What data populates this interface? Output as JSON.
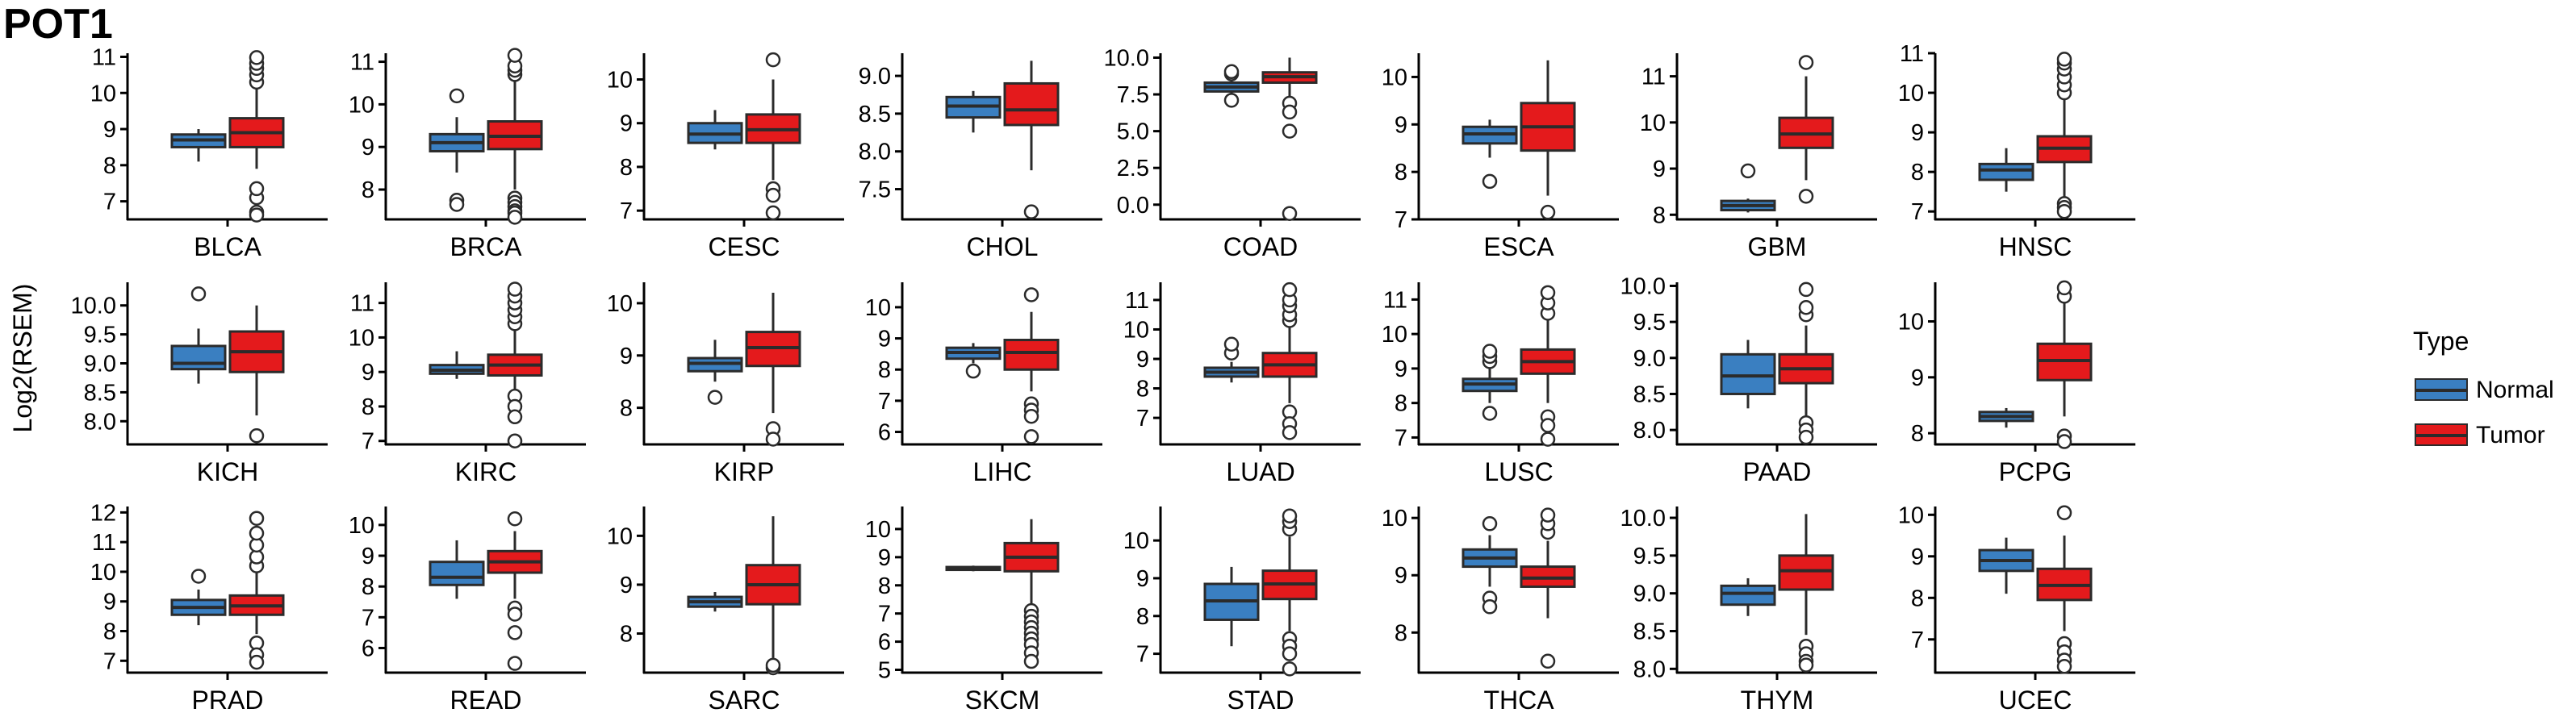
{
  "title": "POT1",
  "ylabel": "Log2(RSEM)",
  "legend": {
    "title": "Type",
    "items": [
      {
        "label": "Normal",
        "color": "#3a7fc1"
      },
      {
        "label": "Tumor",
        "color": "#e41a1c"
      }
    ]
  },
  "chart_data": {
    "type": "boxplot",
    "series_order": [
      "Normal",
      "Tumor"
    ],
    "panels": [
      {
        "name": "BLCA",
        "ylim": [
          6.5,
          11.1
        ],
        "ticks": [
          7,
          8,
          9,
          10,
          11
        ],
        "normal": {
          "q1": 8.5,
          "median": 8.7,
          "q3": 8.85,
          "lo": 8.1,
          "hi": 9.0,
          "out": []
        },
        "tumor": {
          "q1": 8.5,
          "median": 8.9,
          "q3": 9.3,
          "lo": 7.9,
          "hi": 10.2,
          "out": [
            7.1,
            7.35,
            6.7,
            6.62,
            10.3,
            10.5,
            10.68,
            10.82,
            10.98
          ]
        }
      },
      {
        "name": "BRCA",
        "ylim": [
          7.3,
          11.2
        ],
        "ticks": [
          8,
          9,
          10,
          11
        ],
        "normal": {
          "q1": 8.9,
          "median": 9.1,
          "q3": 9.3,
          "lo": 8.4,
          "hi": 9.7,
          "out": [
            7.75,
            7.65,
            10.2
          ]
        },
        "tumor": {
          "q1": 8.95,
          "median": 9.25,
          "q3": 9.6,
          "lo": 8.0,
          "hi": 10.6,
          "out": [
            7.8,
            7.7,
            7.6,
            7.5,
            7.45,
            7.35,
            10.7,
            10.8,
            10.9,
            11.15
          ]
        }
      },
      {
        "name": "CESC",
        "ylim": [
          6.8,
          10.6
        ],
        "ticks": [
          7,
          8,
          9,
          10
        ],
        "normal": {
          "q1": 8.55,
          "median": 8.75,
          "q3": 9.0,
          "lo": 8.4,
          "hi": 9.3,
          "out": []
        },
        "tumor": {
          "q1": 8.55,
          "median": 8.85,
          "q3": 9.2,
          "lo": 7.7,
          "hi": 10.0,
          "out": [
            7.5,
            7.35,
            6.95,
            10.45
          ]
        }
      },
      {
        "name": "CHOL",
        "ylim": [
          7.1,
          9.3
        ],
        "ticks": [
          7.5,
          8.0,
          8.5,
          9.0
        ],
        "normal": {
          "q1": 8.45,
          "median": 8.6,
          "q3": 8.72,
          "lo": 8.25,
          "hi": 8.8,
          "out": []
        },
        "tumor": {
          "q1": 8.35,
          "median": 8.55,
          "q3": 8.9,
          "lo": 7.75,
          "hi": 9.2,
          "out": [
            7.2
          ]
        }
      },
      {
        "name": "COAD",
        "ylim": [
          -1.0,
          10.3
        ],
        "ticks": [
          0.0,
          2.5,
          5.0,
          7.5,
          10.0
        ],
        "normal": {
          "q1": 7.7,
          "median": 8.0,
          "q3": 8.3,
          "lo": 7.5,
          "hi": 8.6,
          "out": [
            7.1,
            8.9,
            9.05
          ]
        },
        "tumor": {
          "q1": 8.3,
          "median": 8.7,
          "q3": 9.0,
          "lo": 7.3,
          "hi": 10.0,
          "out": [
            6.9,
            6.3,
            5.0,
            -0.6
          ]
        }
      },
      {
        "name": "ESCA",
        "ylim": [
          7.0,
          10.5
        ],
        "ticks": [
          7,
          8,
          9,
          10
        ],
        "normal": {
          "q1": 8.6,
          "median": 8.8,
          "q3": 8.95,
          "lo": 8.3,
          "hi": 9.1,
          "out": [
            7.8
          ]
        },
        "tumor": {
          "q1": 8.45,
          "median": 8.95,
          "q3": 9.45,
          "lo": 7.5,
          "hi": 10.35,
          "out": [
            7.15
          ]
        }
      },
      {
        "name": "GBM",
        "ylim": [
          7.9,
          11.5
        ],
        "ticks": [
          8,
          9,
          10,
          11
        ],
        "normal": {
          "q1": 8.1,
          "median": 8.2,
          "q3": 8.3,
          "lo": 8.05,
          "hi": 8.35,
          "out": [
            8.95
          ]
        },
        "tumor": {
          "q1": 9.45,
          "median": 9.75,
          "q3": 10.1,
          "lo": 8.75,
          "hi": 11.0,
          "out": [
            8.4,
            11.3
          ]
        }
      },
      {
        "name": "HNSC",
        "ylim": [
          6.8,
          11.0
        ],
        "ticks": [
          7,
          8,
          9,
          10,
          11
        ],
        "normal": {
          "q1": 7.8,
          "median": 8.05,
          "q3": 8.2,
          "lo": 7.5,
          "hi": 8.6,
          "out": []
        },
        "tumor": {
          "q1": 8.25,
          "median": 8.6,
          "q3": 8.9,
          "lo": 7.3,
          "hi": 9.9,
          "out": [
            7.2,
            7.1,
            7.0,
            10.0,
            10.2,
            10.4,
            10.6,
            10.75,
            10.85
          ]
        }
      },
      {
        "name": "KICH",
        "ylim": [
          7.6,
          10.4
        ],
        "ticks": [
          8.0,
          8.5,
          9.0,
          9.5,
          10.0
        ],
        "normal": {
          "q1": 8.9,
          "median": 9.0,
          "q3": 9.3,
          "lo": 8.65,
          "hi": 9.6,
          "out": [
            10.2
          ]
        },
        "tumor": {
          "q1": 8.85,
          "median": 9.2,
          "q3": 9.55,
          "lo": 8.1,
          "hi": 10.0,
          "out": [
            7.75
          ]
        }
      },
      {
        "name": "KIRC",
        "ylim": [
          6.9,
          11.6
        ],
        "ticks": [
          7,
          8,
          9,
          10,
          11
        ],
        "normal": {
          "q1": 8.95,
          "median": 9.05,
          "q3": 9.2,
          "lo": 8.8,
          "hi": 9.6,
          "out": []
        },
        "tumor": {
          "q1": 8.9,
          "median": 9.2,
          "q3": 9.5,
          "lo": 8.5,
          "hi": 10.3,
          "out": [
            8.3,
            8.0,
            7.7,
            7.0,
            10.4,
            10.6,
            10.8,
            11.0,
            11.2,
            11.4
          ]
        }
      },
      {
        "name": "KIRP",
        "ylim": [
          7.3,
          10.4
        ],
        "ticks": [
          8,
          9,
          10
        ],
        "normal": {
          "q1": 8.7,
          "median": 8.85,
          "q3": 8.95,
          "lo": 8.5,
          "hi": 9.3,
          "out": [
            8.2
          ]
        },
        "tumor": {
          "q1": 8.8,
          "median": 9.15,
          "q3": 9.45,
          "lo": 7.9,
          "hi": 10.2,
          "out": [
            7.6,
            7.4
          ]
        }
      },
      {
        "name": "LIHC",
        "ylim": [
          5.6,
          10.8
        ],
        "ticks": [
          6,
          7,
          8,
          9,
          10
        ],
        "normal": {
          "q1": 8.35,
          "median": 8.55,
          "q3": 8.7,
          "lo": 8.2,
          "hi": 8.85,
          "out": [
            7.95
          ]
        },
        "tumor": {
          "q1": 8.0,
          "median": 8.55,
          "q3": 8.95,
          "lo": 7.3,
          "hi": 9.85,
          "out": [
            6.9,
            6.7,
            6.5,
            5.85,
            10.4
          ]
        }
      },
      {
        "name": "LUAD",
        "ylim": [
          6.1,
          11.6
        ],
        "ticks": [
          7,
          8,
          9,
          10,
          11
        ],
        "normal": {
          "q1": 8.4,
          "median": 8.55,
          "q3": 8.7,
          "lo": 8.2,
          "hi": 8.9,
          "out": [
            9.2,
            9.5
          ]
        },
        "tumor": {
          "q1": 8.4,
          "median": 8.8,
          "q3": 9.2,
          "lo": 7.5,
          "hi": 10.1,
          "out": [
            7.2,
            6.8,
            6.5,
            10.3,
            10.5,
            10.8,
            11.0,
            11.35
          ]
        }
      },
      {
        "name": "LUSC",
        "ylim": [
          6.8,
          11.5
        ],
        "ticks": [
          7,
          8,
          9,
          10,
          11
        ],
        "normal": {
          "q1": 8.35,
          "median": 8.55,
          "q3": 8.7,
          "lo": 8.0,
          "hi": 9.0,
          "out": [
            9.2,
            9.35,
            9.5,
            7.7
          ]
        },
        "tumor": {
          "q1": 8.85,
          "median": 9.2,
          "q3": 9.55,
          "lo": 8.0,
          "hi": 10.4,
          "out": [
            7.6,
            7.35,
            6.95,
            10.6,
            10.9,
            11.2
          ]
        }
      },
      {
        "name": "PAAD",
        "ylim": [
          7.8,
          10.05
        ],
        "ticks": [
          8.0,
          8.5,
          9.0,
          9.5,
          10.0
        ],
        "normal": {
          "q1": 8.5,
          "median": 8.75,
          "q3": 9.05,
          "lo": 8.3,
          "hi": 9.25,
          "out": []
        },
        "tumor": {
          "q1": 8.65,
          "median": 8.85,
          "q3": 9.05,
          "lo": 8.2,
          "hi": 9.45,
          "out": [
            8.1,
            8.0,
            7.9,
            9.6,
            9.7,
            9.95
          ]
        }
      },
      {
        "name": "PCPG",
        "ylim": [
          7.8,
          10.7
        ],
        "ticks": [
          8,
          9,
          10
        ],
        "normal": {
          "q1": 8.22,
          "median": 8.3,
          "q3": 8.38,
          "lo": 8.1,
          "hi": 8.45,
          "out": []
        },
        "tumor": {
          "q1": 8.95,
          "median": 9.3,
          "q3": 9.6,
          "lo": 8.3,
          "hi": 10.35,
          "out": [
            7.95,
            7.85,
            10.45,
            10.6
          ]
        }
      },
      {
        "name": "PRAD",
        "ylim": [
          6.6,
          12.2
        ],
        "ticks": [
          7,
          8,
          9,
          10,
          11,
          12
        ],
        "normal": {
          "q1": 8.55,
          "median": 8.8,
          "q3": 9.05,
          "lo": 8.2,
          "hi": 9.4,
          "out": [
            9.85
          ]
        },
        "tumor": {
          "q1": 8.55,
          "median": 8.85,
          "q3": 9.2,
          "lo": 7.9,
          "hi": 10.0,
          "out": [
            7.6,
            7.2,
            6.95,
            10.2,
            10.5,
            10.9,
            11.3,
            11.8
          ]
        }
      },
      {
        "name": "READ",
        "ylim": [
          5.2,
          10.6
        ],
        "ticks": [
          6,
          7,
          8,
          9,
          10
        ],
        "normal": {
          "q1": 8.05,
          "median": 8.3,
          "q3": 8.8,
          "lo": 7.6,
          "hi": 9.5,
          "out": []
        },
        "tumor": {
          "q1": 8.45,
          "median": 8.8,
          "q3": 9.15,
          "lo": 7.6,
          "hi": 9.8,
          "out": [
            7.3,
            7.1,
            6.5,
            5.5,
            10.2
          ]
        }
      },
      {
        "name": "SARC",
        "ylim": [
          7.2,
          10.6
        ],
        "ticks": [
          8,
          9,
          10
        ],
        "normal": {
          "q1": 8.55,
          "median": 8.65,
          "q3": 8.75,
          "lo": 8.45,
          "hi": 8.85,
          "out": []
        },
        "tumor": {
          "q1": 8.6,
          "median": 9.0,
          "q3": 9.4,
          "lo": 7.5,
          "hi": 10.4,
          "out": [
            7.3,
            7.35
          ]
        }
      },
      {
        "name": "SKCM",
        "ylim": [
          4.9,
          10.8
        ],
        "ticks": [
          5,
          6,
          7,
          8,
          9,
          10
        ],
        "normal": {
          "q1": 8.55,
          "median": 8.6,
          "q3": 8.65,
          "lo": 8.5,
          "hi": 8.7,
          "out": []
        },
        "tumor": {
          "q1": 8.5,
          "median": 9.0,
          "q3": 9.5,
          "lo": 7.3,
          "hi": 10.35,
          "out": [
            7.1,
            6.9,
            6.7,
            6.5,
            6.3,
            6.1,
            5.9,
            5.6,
            5.3
          ]
        }
      },
      {
        "name": "STAD",
        "ylim": [
          6.5,
          10.9
        ],
        "ticks": [
          7,
          8,
          9,
          10
        ],
        "normal": {
          "q1": 7.9,
          "median": 8.4,
          "q3": 8.85,
          "lo": 7.2,
          "hi": 9.3,
          "out": []
        },
        "tumor": {
          "q1": 8.45,
          "median": 8.85,
          "q3": 9.2,
          "lo": 7.6,
          "hi": 10.1,
          "out": [
            7.4,
            7.2,
            7.0,
            6.6,
            10.3,
            10.5,
            10.65
          ]
        }
      },
      {
        "name": "THCA",
        "ylim": [
          7.3,
          10.2
        ],
        "ticks": [
          8,
          9,
          10
        ],
        "normal": {
          "q1": 9.15,
          "median": 9.3,
          "q3": 9.45,
          "lo": 8.8,
          "hi": 9.7,
          "out": [
            8.6,
            8.45,
            9.9
          ]
        },
        "tumor": {
          "q1": 8.8,
          "median": 8.95,
          "q3": 9.15,
          "lo": 8.25,
          "hi": 9.6,
          "out": [
            7.5,
            9.75,
            9.9,
            10.05
          ]
        }
      },
      {
        "name": "THYM",
        "ylim": [
          7.95,
          10.15
        ],
        "ticks": [
          8.0,
          8.5,
          9.0,
          9.5,
          10.0
        ],
        "normal": {
          "q1": 8.85,
          "median": 9.0,
          "q3": 9.1,
          "lo": 8.7,
          "hi": 9.2,
          "out": []
        },
        "tumor": {
          "q1": 9.05,
          "median": 9.3,
          "q3": 9.5,
          "lo": 8.45,
          "hi": 10.05,
          "out": [
            8.3,
            8.2,
            8.1,
            8.05
          ]
        }
      },
      {
        "name": "UCEC",
        "ylim": [
          6.2,
          10.2
        ],
        "ticks": [
          7,
          8,
          9,
          10
        ],
        "normal": {
          "q1": 8.65,
          "median": 8.9,
          "q3": 9.15,
          "lo": 8.1,
          "hi": 9.45,
          "out": []
        },
        "tumor": {
          "q1": 7.95,
          "median": 8.3,
          "q3": 8.7,
          "lo": 7.2,
          "hi": 9.5,
          "out": [
            6.9,
            6.7,
            6.5,
            6.35,
            10.05
          ]
        }
      }
    ]
  }
}
